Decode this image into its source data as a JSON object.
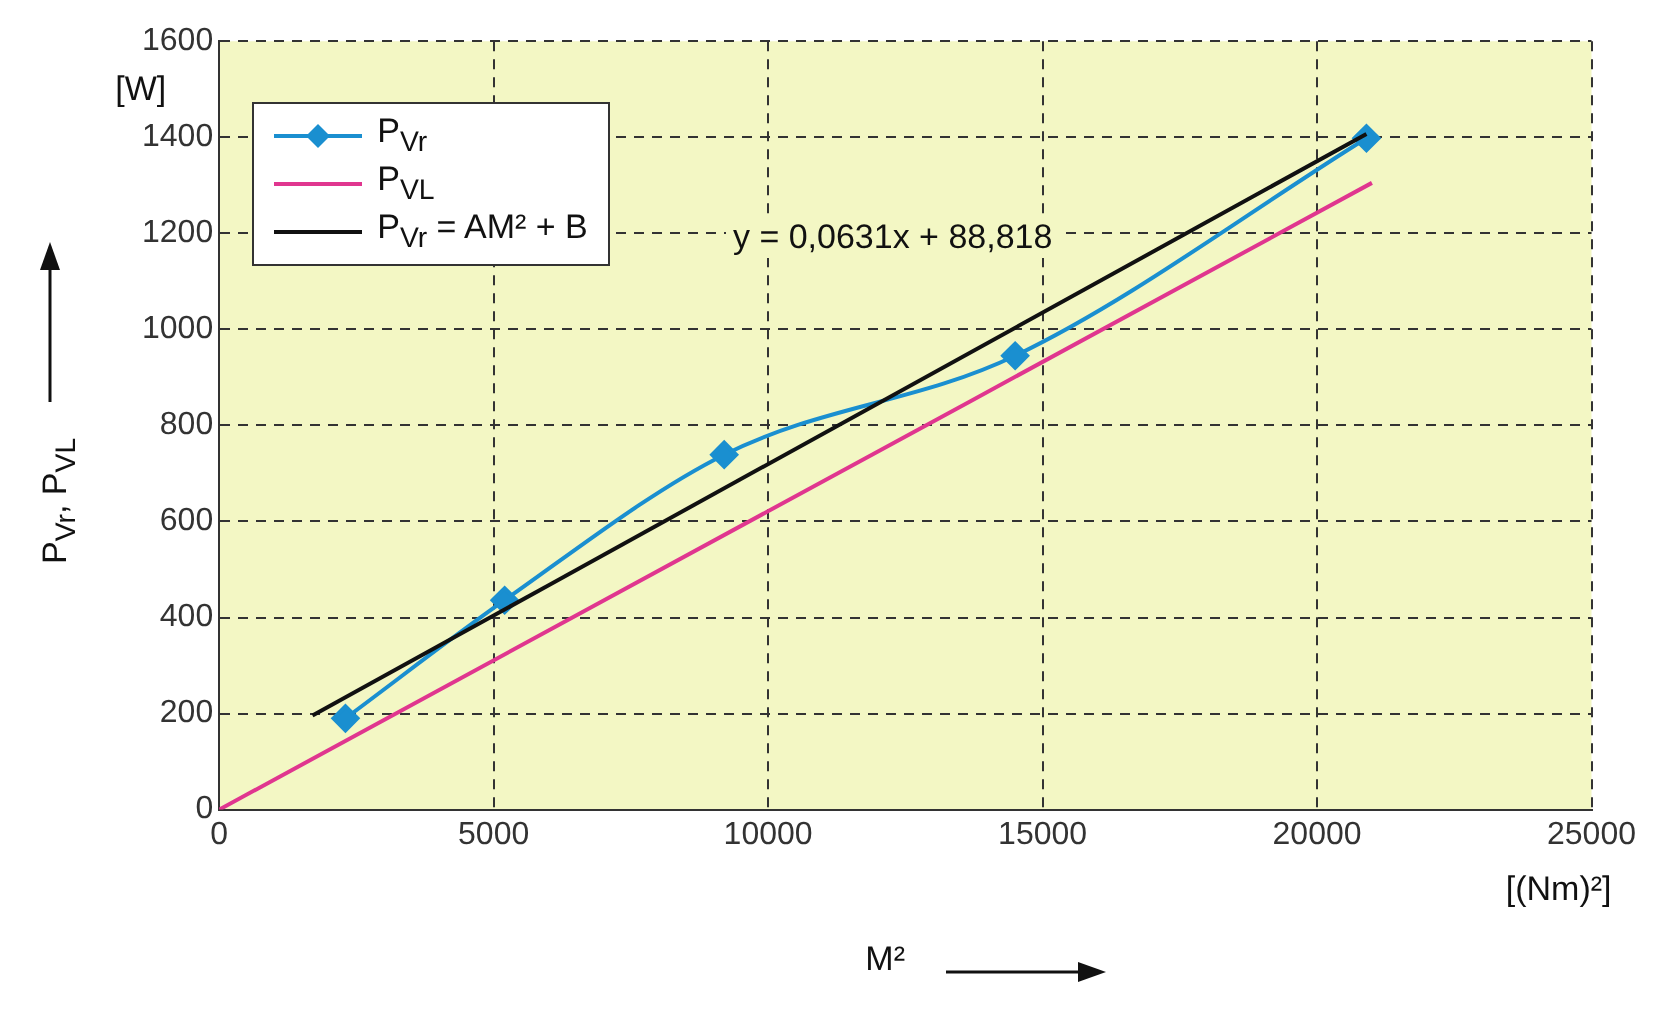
{
  "chart_data": {
    "type": "line",
    "xlabel": "M²",
    "ylabel": "P$_{Vr}$, P$_{VL}$",
    "xlim": [
      0,
      25000
    ],
    "xticks": [
      0,
      5000,
      10000,
      15000,
      20000,
      25000
    ],
    "ylim": [
      0,
      1600
    ],
    "yticks": [
      0,
      200,
      400,
      600,
      800,
      1000,
      1200,
      1400,
      1600
    ],
    "grid": true,
    "legend": "top left",
    "series": [
      {
        "name": "P$_{Vr}$",
        "color": "#1a8fd0",
        "marker": "diamond",
        "x": [
          2300,
          5200,
          9200,
          14500,
          20900
        ],
        "values": [
          190,
          436,
          739,
          945,
          1398
        ]
      },
      {
        "name": "P$_{VL}$",
        "color": "#e0368f",
        "marker": "none",
        "x": [
          0,
          21000
        ],
        "values": [
          0,
          1305
        ]
      },
      {
        "name": "P$_{Vr}$ = AM² + B",
        "color": "#111111",
        "marker": "none",
        "x": [
          1700,
          20900
        ],
        "values": [
          196,
          1407
        ]
      }
    ],
    "annotations": [
      "[W]",
      "[(Nm)²]",
      "y = 0,0631x + 88,818"
    ]
  }
}
